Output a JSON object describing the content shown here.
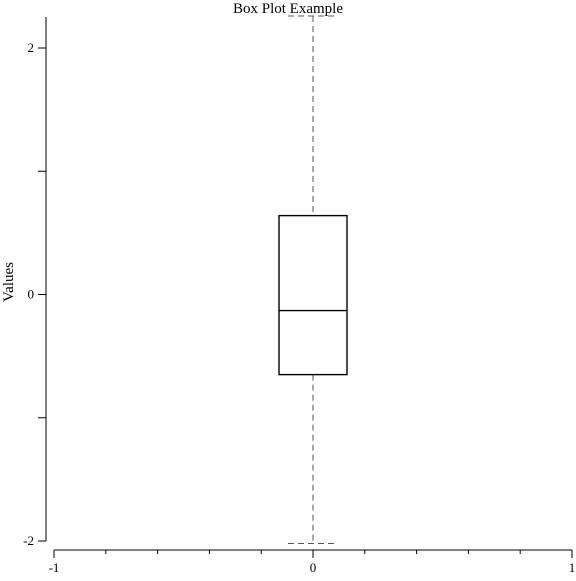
{
  "chart_data": {
    "type": "boxplot",
    "title": "Box Plot Example",
    "xlabel": "",
    "ylabel": "Values",
    "xlim": [
      -1,
      1
    ],
    "ylim": [
      -2,
      2
    ],
    "x_ticks_labeled": [
      {
        "value": -1,
        "label": "-1"
      },
      {
        "value": 0,
        "label": "0"
      },
      {
        "value": 1,
        "label": "1"
      }
    ],
    "x_ticks_minor": [
      -0.8,
      -0.6,
      -0.4,
      -0.2,
      0.2,
      0.4,
      0.6,
      0.8
    ],
    "y_ticks": [
      {
        "value": 2,
        "label": "2"
      },
      {
        "value": 1,
        "label": ""
      },
      {
        "value": 0,
        "label": "0"
      },
      {
        "value": -1,
        "label": ""
      },
      {
        "value": -2,
        "label": "-2"
      }
    ],
    "grid": false,
    "boxes": [
      {
        "position": 0,
        "whisker_low": -2.02,
        "q1": -0.65,
        "median": -0.13,
        "q3": 0.64,
        "whisker_high": 2.26
      }
    ],
    "colors": {
      "box": "#000000",
      "whisker": "#555555",
      "background": "#ffffff"
    }
  }
}
